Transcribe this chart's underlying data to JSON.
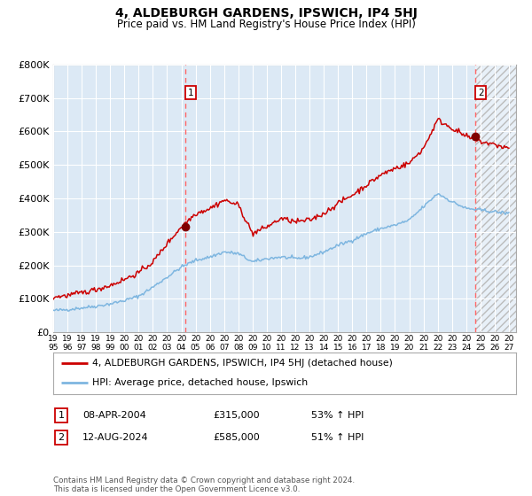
{
  "title": "4, ALDEBURGH GARDENS, IPSWICH, IP4 5HJ",
  "subtitle": "Price paid vs. HM Land Registry's House Price Index (HPI)",
  "ylim": [
    0,
    800000
  ],
  "yticks": [
    0,
    100000,
    200000,
    300000,
    400000,
    500000,
    600000,
    700000,
    800000
  ],
  "ytick_labels": [
    "£0",
    "£100K",
    "£200K",
    "£300K",
    "£400K",
    "£500K",
    "£600K",
    "£700K",
    "£800K"
  ],
  "xlim_start": 1995.0,
  "xlim_end": 2027.5,
  "hatch_start": 2024.62,
  "plot_bg_color": "#dce9f5",
  "fig_bg_color": "#ffffff",
  "grid_color": "#ffffff",
  "red_line_color": "#cc0000",
  "blue_line_color": "#7eb6e0",
  "marker_color": "#800000",
  "dashed_line_color": "#ff6666",
  "sale1_x": 2004.27,
  "sale1_y": 315000,
  "sale2_x": 2024.62,
  "sale2_y": 585000,
  "legend_line1": "4, ALDEBURGH GARDENS, IPSWICH, IP4 5HJ (detached house)",
  "legend_line2": "HPI: Average price, detached house, Ipswich",
  "annotation1_date": "08-APR-2004",
  "annotation1_price": "£315,000",
  "annotation1_hpi": "53% ↑ HPI",
  "annotation2_date": "12-AUG-2024",
  "annotation2_price": "£585,000",
  "annotation2_hpi": "51% ↑ HPI",
  "footer": "Contains HM Land Registry data © Crown copyright and database right 2024.\nThis data is licensed under the Open Government Licence v3.0."
}
